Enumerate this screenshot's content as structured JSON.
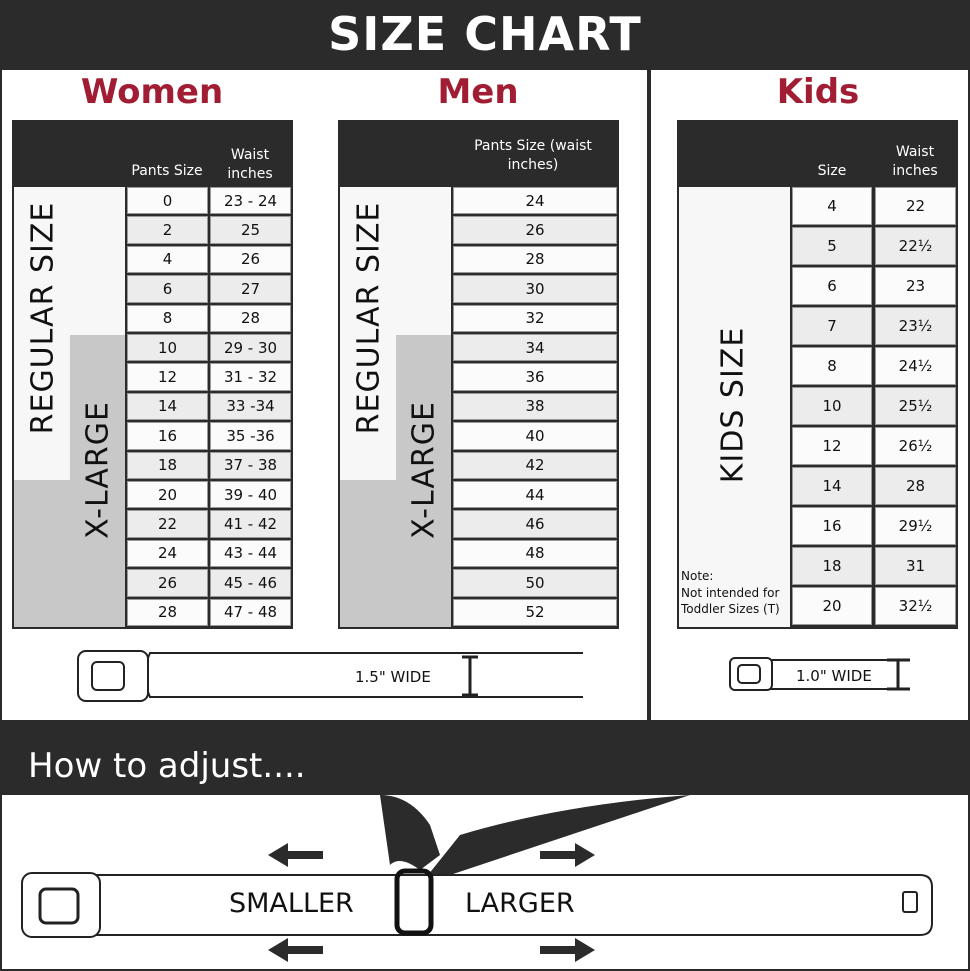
{
  "title": "SIZE CHART",
  "women": {
    "title": "Women",
    "headers": {
      "size": "Pants Size",
      "waist": "Waist inches"
    },
    "regular_label": "REGULAR SIZE",
    "xlarge_label": "X-LARGE",
    "rows": [
      [
        "0",
        "23 - 24"
      ],
      [
        "2",
        "25"
      ],
      [
        "4",
        "26"
      ],
      [
        "6",
        "27"
      ],
      [
        "8",
        "28"
      ],
      [
        "10",
        "29 - 30"
      ],
      [
        "12",
        "31 - 32"
      ],
      [
        "14",
        "33 -34"
      ],
      [
        "16",
        "35 -36"
      ],
      [
        "18",
        "37 - 38"
      ],
      [
        "20",
        "39 - 40"
      ],
      [
        "22",
        "41 - 42"
      ],
      [
        "24",
        "43 - 44"
      ],
      [
        "26",
        "45 - 46"
      ],
      [
        "28",
        "47 - 48"
      ]
    ]
  },
  "men": {
    "title": "Men",
    "headers": {
      "size": "Pants Size (waist inches)"
    },
    "regular_label": "REGULAR SIZE",
    "xlarge_label": "X-LARGE",
    "rows": [
      "24",
      "26",
      "28",
      "30",
      "32",
      "34",
      "36",
      "38",
      "40",
      "42",
      "44",
      "46",
      "48",
      "50",
      "52"
    ]
  },
  "kids": {
    "title": "Kids",
    "headers": {
      "size": "Size",
      "waist": "Waist inches"
    },
    "label": "KIDS SIZE",
    "note_title": "Note:",
    "note": "Not intended for Toddler Sizes (T)",
    "rows": [
      [
        "4",
        "22"
      ],
      [
        "5",
        "22½"
      ],
      [
        "6",
        "23"
      ],
      [
        "7",
        "23½"
      ],
      [
        "8",
        "24½"
      ],
      [
        "10",
        "25½"
      ],
      [
        "12",
        "26½"
      ],
      [
        "14",
        "28"
      ],
      [
        "16",
        "29½"
      ],
      [
        "18",
        "31"
      ],
      [
        "20",
        "32½"
      ]
    ]
  },
  "adult_belt_width": "1.5\" WIDE",
  "kids_belt_width": "1.0\" WIDE",
  "how_to": {
    "title": "How to adjust....",
    "smaller": "SMALLER",
    "larger": "LARGER"
  },
  "colors": {
    "accent": "#a11d33",
    "dark": "#2b2b2b"
  }
}
